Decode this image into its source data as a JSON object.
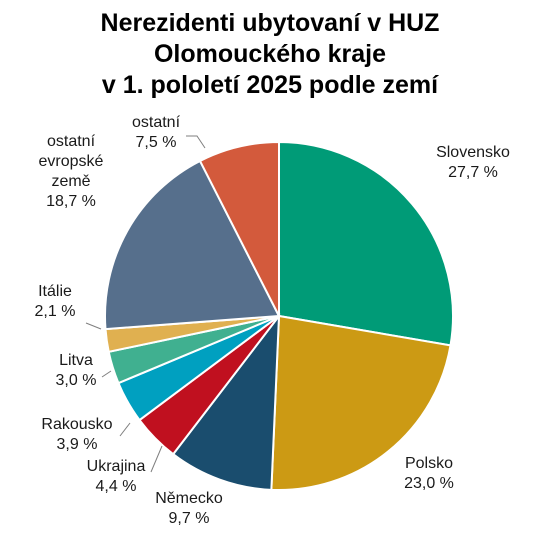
{
  "chart_data": {
    "type": "pie",
    "title_lines": [
      "Nerezidenti ubytovaní v HUZ",
      "Olomouckého kraje",
      "v 1. pololetí 2025 podle zemí"
    ],
    "slices": [
      {
        "name": "Slovensko",
        "name_lines": [
          "Slovensko"
        ],
        "value": 27.7,
        "label": "27,7 %",
        "color": "#009B77"
      },
      {
        "name": "Polsko",
        "name_lines": [
          "Polsko"
        ],
        "value": 23.0,
        "label": "23,0 %",
        "color": "#CC9A14"
      },
      {
        "name": "Německo",
        "name_lines": [
          "Německo"
        ],
        "value": 9.7,
        "label": "9,7 %",
        "color": "#1A4D6E"
      },
      {
        "name": "Ukrajina",
        "name_lines": [
          "Ukrajina"
        ],
        "value": 4.4,
        "label": "4,4 %",
        "color": "#C0101F"
      },
      {
        "name": "Rakousko",
        "name_lines": [
          "Rakousko"
        ],
        "value": 3.9,
        "label": "3,9 %",
        "color": "#00A0C0"
      },
      {
        "name": "Litva",
        "name_lines": [
          "Litva"
        ],
        "value": 3.0,
        "label": "3,0 %",
        "color": "#40B090"
      },
      {
        "name": "Itálie",
        "name_lines": [
          "Itálie"
        ],
        "value": 2.1,
        "label": "2,1 %",
        "color": "#E0B050"
      },
      {
        "name": "ostatní evropské země",
        "name_lines": [
          "ostatní",
          "evropské",
          "země"
        ],
        "value": 18.7,
        "label": "18,7 %",
        "color": "#566F8C"
      },
      {
        "name": "ostatní",
        "name_lines": [
          "ostatní"
        ],
        "value": 7.5,
        "label": "7,5 %",
        "color": "#D35A3C"
      }
    ]
  }
}
